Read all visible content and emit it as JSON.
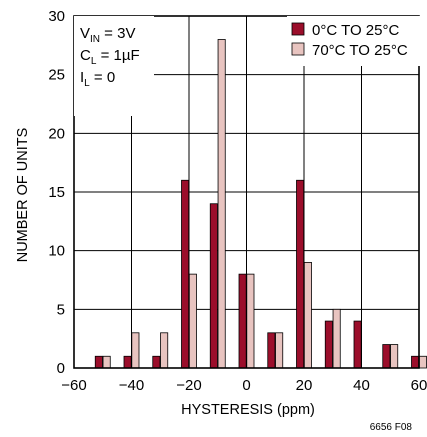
{
  "chart_data": {
    "type": "bar",
    "xlabel": "HYSTERESIS (ppm)",
    "ylabel": "NUMBER OF UNITS",
    "xlim": [
      -60,
      60
    ],
    "ylim": [
      0,
      30
    ],
    "x_ticks": [
      "−60",
      "−40",
      "−20",
      "0",
      "20",
      "40",
      "60"
    ],
    "x_tick_values": [
      -60,
      -40,
      -20,
      0,
      20,
      40,
      60
    ],
    "y_ticks": [
      "0",
      "5",
      "10",
      "15",
      "20",
      "25",
      "30"
    ],
    "y_tick_values": [
      0,
      5,
      10,
      15,
      20,
      25,
      30
    ],
    "grid": true,
    "legend_position": "top-right",
    "x": [
      -50,
      -40,
      -30,
      -20,
      -10,
      0,
      10,
      20,
      30,
      40,
      50,
      60
    ],
    "series": [
      {
        "name": "0°C TO 25°C",
        "color": "#9B0E2B",
        "values": [
          1,
          1,
          1,
          16,
          14,
          8,
          3,
          16,
          4,
          4,
          2,
          1
        ]
      },
      {
        "name": "70°C TO 25°C",
        "color": "#E8C4C0",
        "values": [
          1,
          3,
          3,
          8,
          28,
          8,
          3,
          9,
          5,
          0,
          2,
          1
        ]
      }
    ],
    "annotations": {
      "vin": {
        "main": "V",
        "sub": "IN",
        "rest": " = 3V"
      },
      "cl": {
        "main": "C",
        "sub": "L",
        "rest": " = 1µF"
      },
      "il": {
        "main": "I",
        "sub": "L",
        "rest": " = 0"
      }
    },
    "figure_id": "6656 F08"
  }
}
